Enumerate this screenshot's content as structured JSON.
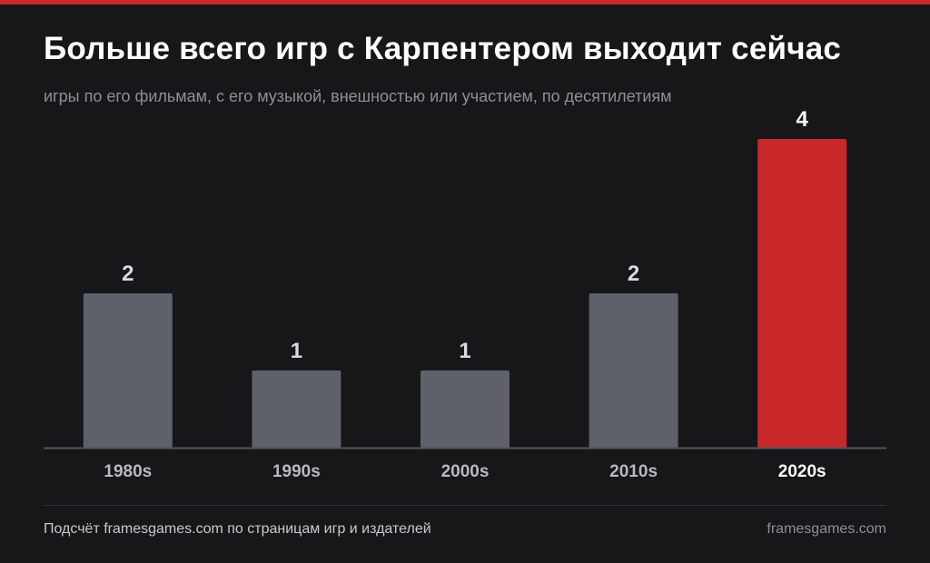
{
  "title": "Больше всего игр с Карпентером выходит сейчас",
  "subtitle": "игры по его фильмам, с его музыкой, внешностью или участием, по десятилетиям",
  "footer": {
    "note": "Подсчёт framesgames.com по страницам игр и издателей",
    "brand": "framesgames.com"
  },
  "colors": {
    "background": "#171618",
    "accent": "#c8282a",
    "bar": "#5e616a",
    "axis": "#55545a",
    "label": "#b8b9be",
    "value_label": "#d9dade",
    "highlight_label": "#ffffff"
  },
  "chart_data": {
    "type": "bar",
    "categories": [
      "1980s",
      "1990s",
      "2000s",
      "2010s",
      "2020s"
    ],
    "values": [
      2,
      1,
      1,
      2,
      4
    ],
    "highlight_index": 4,
    "ylim": [
      0,
      4
    ],
    "data_labels": [
      "2",
      "1",
      "1",
      "2",
      "4"
    ],
    "grid": false,
    "legend": "none"
  }
}
